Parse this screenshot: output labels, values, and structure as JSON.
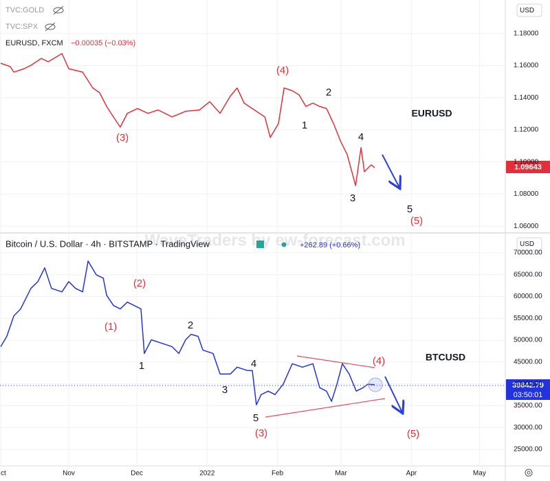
{
  "watermark": "WaveTraders by ew-forecast.com",
  "chart_data": [
    {
      "type": "line",
      "title": "EURUSD",
      "overlays": [
        "TVC:GOLD",
        "TVC:SPX"
      ],
      "change": "−0.00035 (−0.03%)",
      "currency": "USD",
      "last_price_label": "1.09643",
      "x": [
        1,
        5.2,
        6.8,
        11.3,
        14.3,
        18.9,
        21.9,
        28.0,
        31.0,
        37.1,
        41.6,
        44.6,
        47.7,
        50.7,
        53.7,
        56.8,
        61.3,
        65.9,
        70.4,
        76.5,
        82.5,
        88.6,
        93.1,
        97.7,
        102.2,
        105.2,
        108.3,
        112.8,
        117.4,
        119.8,
        123.4,
        125.9,
        129.5,
        132.5,
        135.5,
        138.6,
        141.6,
        144.6,
        147.7,
        150.7,
        153.7,
        157.4,
        159.8,
        161.3,
        164.3,
        165.8
      ],
      "series": [
        {
          "name": "EURUSD, FXCM",
          "color": "#e0303a",
          "values": [
            1.1615,
            1.1594,
            1.156,
            1.1581,
            1.1602,
            1.1645,
            1.1624,
            1.1675,
            1.1581,
            1.156,
            1.1461,
            1.1431,
            1.1346,
            1.1281,
            1.1217,
            1.1303,
            1.1333,
            1.1303,
            1.1324,
            1.1281,
            1.1316,
            1.1324,
            1.1376,
            1.1303,
            1.141,
            1.1461,
            1.1367,
            1.1324,
            1.1281,
            1.1153,
            1.1239,
            1.1461,
            1.1444,
            1.1418,
            1.1346,
            1.1367,
            1.1346,
            1.1333,
            1.1239,
            1.1132,
            1.1046,
            1.0853,
            1.1089,
            1.0939,
            1.0982,
            1.09643
          ]
        }
      ],
      "xlim": [
        0.7,
        223.4
      ],
      "ylim": [
        1.0562,
        1.2009
      ],
      "yticks": [
        {
          "value": 1.06,
          "label": "1.06000"
        },
        {
          "value": 1.08,
          "label": "1.08000"
        },
        {
          "value": 1.1,
          "label": "1.10000"
        },
        {
          "value": 1.12,
          "label": "1.12000"
        },
        {
          "value": 1.14,
          "label": "1.14000"
        },
        {
          "value": 1.16,
          "label": "1.16000"
        },
        {
          "value": 1.18,
          "label": "1.18000"
        }
      ],
      "grid": true,
      "annotations": [
        "(4)",
        "2",
        "1",
        "(3)",
        "4",
        "3",
        "5",
        "(5)"
      ]
    },
    {
      "type": "line",
      "title": "BTCUSD",
      "header": "Bitcoin / U.S. Dollar · 4h · BITSTAMP · TradingView",
      "change": "+262.89 (+0.66%)",
      "currency": "USD",
      "last_price_label": "39842.79",
      "countdown": "03:50:01",
      "x": [
        1,
        3.7,
        6.8,
        9.8,
        14.3,
        17.4,
        20.4,
        23.4,
        28.0,
        31.0,
        34.0,
        37.1,
        39.5,
        43.1,
        46.2,
        47.7,
        50.7,
        53.7,
        56.8,
        59.8,
        62.8,
        64.3,
        67.4,
        71.9,
        76.5,
        79.5,
        82.5,
        84.9,
        88.0,
        90.1,
        94.6,
        97.7,
        102.2,
        105.2,
        109.8,
        111.9,
        113.7,
        115.8,
        118.9,
        121.9,
        125.5,
        129.5,
        134.0,
        138.6,
        141.6,
        144.6,
        146.8,
        149.2,
        151.6,
        154.6,
        157.7,
        160.7,
        162.8,
        165.8
      ],
      "series": [
        {
          "name": "Bitcoin / U.S. Dollar",
          "color": "#2233dd",
          "values": [
            48530,
            50885,
            55586,
            57153,
            61854,
            63421,
            66555,
            61854,
            61070,
            63421,
            61854,
            61070,
            68122,
            64988,
            64204,
            60287,
            57936,
            57153,
            58720,
            57936,
            57153,
            46967,
            50101,
            49318,
            48534,
            46967,
            50101,
            51355,
            50885,
            47751,
            46967,
            42266,
            42266,
            43833,
            43050,
            43050,
            35215,
            37565,
            38349,
            37565,
            39916,
            44617,
            43833,
            44617,
            39132,
            38349,
            35998,
            39916,
            44617,
            42266,
            38349,
            39132,
            39916,
            39842.79
          ]
        }
      ],
      "xlim": [
        0.7,
        223.4
      ],
      "ylim": [
        21240,
        74390
      ],
      "xticks": [
        {
          "value": 1,
          "label": "ct"
        },
        {
          "value": 31,
          "label": "Nov"
        },
        {
          "value": 61,
          "label": "Dec"
        },
        {
          "value": 92,
          "label": "2022"
        },
        {
          "value": 123,
          "label": "Feb"
        },
        {
          "value": 151,
          "label": "Mar"
        },
        {
          "value": 182,
          "label": "Apr"
        },
        {
          "value": 212,
          "label": "May"
        }
      ],
      "yticks": [
        {
          "value": 25000,
          "label": "25000.00"
        },
        {
          "value": 30000,
          "label": "30000.00"
        },
        {
          "value": 35000,
          "label": "35000.00"
        },
        {
          "value": 40000,
          "label": "40000.00"
        },
        {
          "value": 45000,
          "label": "45000.00"
        },
        {
          "value": 50000,
          "label": "50000.00"
        },
        {
          "value": 55000,
          "label": "55000.00"
        },
        {
          "value": 60000,
          "label": "60000.00"
        },
        {
          "value": 65000,
          "label": "65000.00"
        },
        {
          "value": 70000,
          "label": "70000.00"
        }
      ],
      "grid": true,
      "annotations": [
        "(2)",
        "(1)",
        "1",
        "2",
        "3",
        "4",
        "5",
        "(3)",
        "(4)",
        "(5)"
      ]
    }
  ]
}
